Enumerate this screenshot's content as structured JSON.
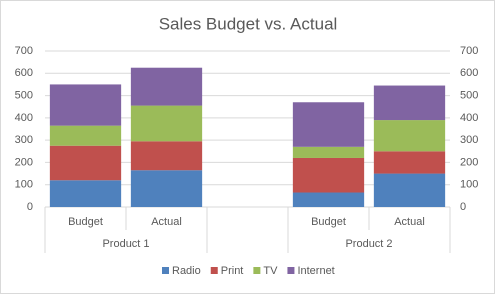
{
  "chart_data": {
    "type": "stacked-bar",
    "title": "Sales Budget vs. Actual",
    "groups": [
      {
        "label": "Product 1",
        "categories": [
          "Budget",
          "Actual"
        ]
      },
      {
        "label": null,
        "categories": [
          null
        ]
      },
      {
        "label": "Product 2",
        "categories": [
          "Budget",
          "Actual"
        ]
      }
    ],
    "series": [
      {
        "name": "Radio",
        "color": "#4f81bd",
        "values": [
          120,
          165,
          null,
          65,
          150
        ]
      },
      {
        "name": "Print",
        "color": "#c0504d",
        "values": [
          155,
          130,
          null,
          155,
          100
        ]
      },
      {
        "name": "TV",
        "color": "#9bbb59",
        "values": [
          90,
          160,
          null,
          50,
          140
        ]
      },
      {
        "name": "Internet",
        "color": "#8064a2",
        "values": [
          185,
          170,
          null,
          200,
          155
        ]
      }
    ],
    "ylim": [
      0,
      700
    ],
    "yticks": [
      0,
      100,
      200,
      300,
      400,
      500,
      600,
      700
    ],
    "y2lim": [
      0,
      700
    ],
    "y2ticks": [
      0,
      100,
      200,
      300,
      400,
      500,
      600,
      700
    ],
    "grid": true,
    "legend": "bottom"
  }
}
